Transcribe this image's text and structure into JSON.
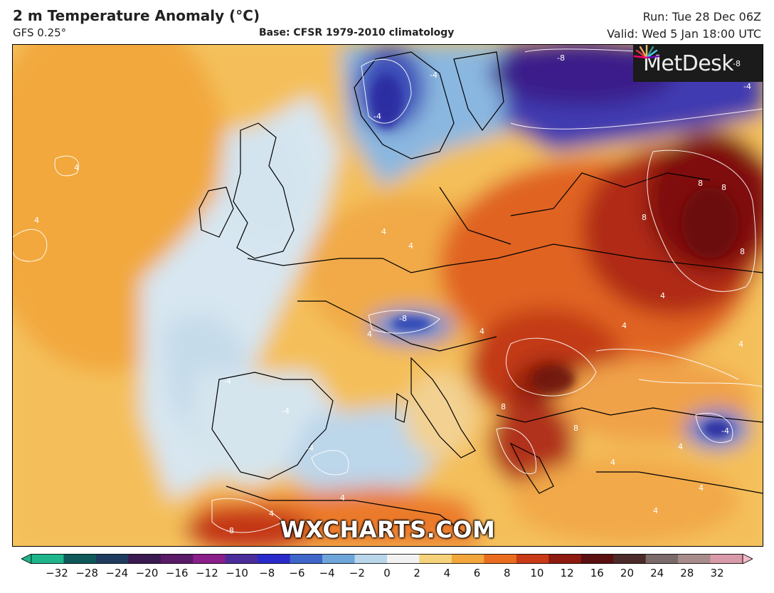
{
  "header": {
    "title": "2 m Temperature Anomaly (°C)",
    "model": "GFS 0.25°",
    "base": "Base: CFSR 1979-2010 climatology",
    "run": "Run: Tue 28 Dec 06Z",
    "valid": "Valid: Wed 5 Jan 18:00 UTC"
  },
  "logo": {
    "text": "MetDesk"
  },
  "watermark": "WXCHARTS.COM",
  "contour_labels": [
    "4",
    "4",
    "-4",
    "-4",
    "-8",
    "-4",
    "-8",
    "4",
    "8",
    "8",
    "8",
    "8",
    "4",
    "4",
    "4",
    "4",
    "4",
    "-8",
    "4",
    "-4",
    "-4",
    "-4",
    "8",
    "8",
    "4",
    "4",
    "4",
    "4",
    "-8",
    "-4",
    "4",
    "4"
  ],
  "colorbar": {
    "ticks": [
      "−32",
      "−28",
      "−24",
      "−20",
      "−16",
      "−12",
      "−10",
      "−8",
      "−6",
      "−4",
      "−2",
      "0",
      "2",
      "4",
      "6",
      "8",
      "10",
      "12",
      "16",
      "20",
      "24",
      "28",
      "32"
    ],
    "colors": [
      "#1fb58a",
      "#10595a",
      "#1f3c5f",
      "#3a1a50",
      "#5a1a68",
      "#8a1e8a",
      "#4a2c9a",
      "#2a2acb",
      "#3f66c9",
      "#6ea6d9",
      "#b9d6ea",
      "#f2f2f2",
      "#f6d27a",
      "#f2a63b",
      "#ea6d1f",
      "#c93a16",
      "#8e1a10",
      "#5b0f10",
      "#4c2a2a",
      "#7a6a6a",
      "#a88c8c",
      "#d89aa8",
      "#f3b9c8"
    ]
  }
}
